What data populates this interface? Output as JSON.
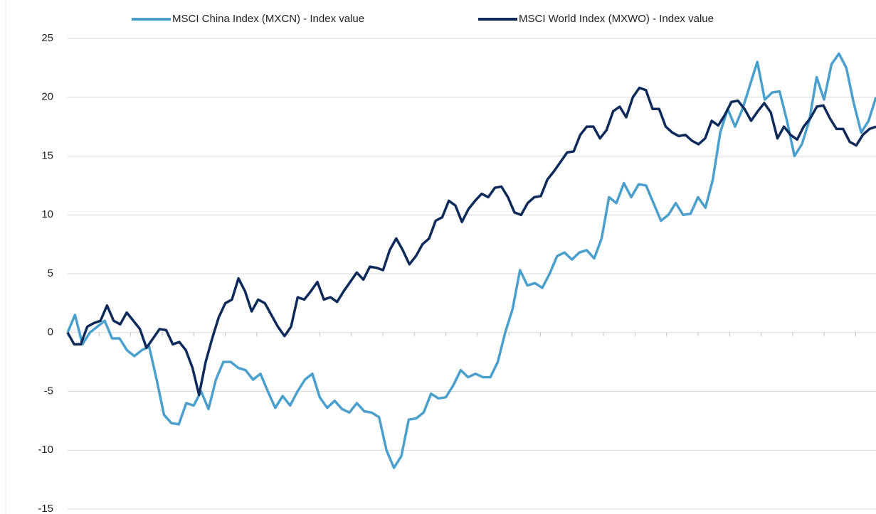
{
  "chart_data": {
    "type": "line",
    "series": [
      {
        "name": "MSCI China Index (MXCN) - Index value",
        "color": "#4a9fcc",
        "values": [
          0,
          1.5,
          -1,
          0,
          0.5,
          1,
          -0.5,
          -0.5,
          -1.5,
          -2,
          -1.5,
          -1.2,
          -4,
          -7,
          -7.7,
          -7.8,
          -6,
          -6.2,
          -5,
          -6.5,
          -4,
          -2.5,
          -2.5,
          -3,
          -3.2,
          -4,
          -3.5,
          -5,
          -6.4,
          -5.4,
          -6.2,
          -5,
          -4,
          -3.5,
          -5.5,
          -6.4,
          -5.8,
          -6.5,
          -6.8,
          -6,
          -6.7,
          -6.8,
          -7.2,
          -10,
          -11.5,
          -10.5,
          -7.4,
          -7.3,
          -6.8,
          -5.2,
          -5.6,
          -5.5,
          -4.5,
          -3.2,
          -3.8,
          -3.5,
          -3.8,
          -3.8,
          -2.5,
          0,
          2,
          5.3,
          4,
          4.2,
          3.8,
          5,
          6.5,
          6.8,
          6.2,
          6.8,
          7,
          6.3,
          8,
          11.5,
          11,
          12.7,
          11.5,
          12.6,
          12.5,
          11,
          9.5,
          10,
          11,
          10,
          10.1,
          11.5,
          10.6,
          13,
          17,
          19,
          17.5,
          19,
          21,
          23,
          19.8,
          20.4,
          20.5,
          18,
          15,
          16,
          18,
          21.7,
          19.8,
          22.8,
          23.7,
          22.5,
          19.5,
          17,
          18,
          20
        ]
      },
      {
        "name": "MSCI World Index (MXWO) - Index value",
        "color": "#0d2a5a",
        "values": [
          0,
          -1,
          -1,
          0.5,
          0.8,
          1,
          2.3,
          1,
          0.7,
          1.7,
          1,
          0.3,
          -1.3,
          -0.5,
          0.3,
          0.2,
          -1,
          -0.8,
          -1.5,
          -3,
          -5.3,
          -2.5,
          -0.5,
          1.3,
          2.5,
          2.8,
          4.6,
          3.5,
          1.8,
          2.8,
          2.5,
          1.5,
          0.5,
          -0.3,
          0.5,
          3,
          2.8,
          3.5,
          4.3,
          2.8,
          3,
          2.6,
          3.5,
          4.3,
          5.1,
          4.5,
          5.6,
          5.5,
          5.3,
          7,
          8,
          7,
          5.8,
          6.5,
          7.5,
          8,
          9.5,
          9.8,
          11.2,
          10.8,
          9.4,
          10.5,
          11.2,
          11.8,
          11.5,
          12.3,
          12.4,
          11.5,
          10.2,
          10,
          11,
          11.5,
          11.6,
          13,
          13.7,
          14.5,
          15.3,
          15.4,
          16.8,
          17.5,
          17.5,
          16.5,
          17.2,
          18.8,
          19.2,
          18.3,
          20,
          20.8,
          20.6,
          19,
          19,
          17.5,
          17,
          16.7,
          16.8,
          16.3,
          16,
          16.5,
          18,
          17.6,
          18.5,
          19.6,
          19.7,
          19,
          18,
          18.8,
          19.5,
          18.7,
          16.5,
          17.5,
          16.8,
          16.4,
          17.5,
          18.2,
          19.2,
          19.3,
          18.2,
          17.3,
          17.3,
          16.2,
          15.9,
          16.8,
          17.3,
          17.5
        ]
      }
    ],
    "ylim": [
      -15,
      25
    ],
    "yticks": [
      -15,
      -10,
      -5,
      0,
      5,
      10,
      15,
      20,
      25
    ],
    "grid": true,
    "legend": "top"
  }
}
